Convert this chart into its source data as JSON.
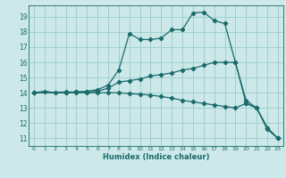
{
  "xlabel": "Humidex (Indice chaleur)",
  "bg_color": "#cce8e8",
  "grid_color": "#99cccc",
  "line_color": "#1a6b6b",
  "xlim": [
    -0.5,
    23.5
  ],
  "ylim": [
    10.5,
    19.75
  ],
  "xticks": [
    0,
    1,
    2,
    3,
    4,
    5,
    6,
    7,
    8,
    9,
    10,
    11,
    12,
    13,
    14,
    15,
    16,
    17,
    18,
    19,
    20,
    21,
    22,
    23
  ],
  "yticks": [
    11,
    12,
    13,
    14,
    15,
    16,
    17,
    18,
    19
  ],
  "line1_x": [
    0,
    1,
    2,
    3,
    4,
    5,
    6,
    7,
    8,
    9,
    10,
    11,
    12,
    13,
    14,
    15,
    16,
    17,
    18,
    19,
    20,
    21,
    22,
    23
  ],
  "line1_y": [
    14.0,
    14.1,
    14.0,
    14.0,
    14.05,
    14.1,
    14.2,
    14.5,
    15.5,
    17.9,
    17.5,
    17.5,
    17.6,
    18.15,
    18.15,
    19.25,
    19.3,
    18.75,
    18.55,
    16.0,
    13.3,
    13.0,
    11.6,
    11.0
  ],
  "line2_x": [
    0,
    3,
    4,
    5,
    6,
    7,
    8,
    9,
    10,
    11,
    12,
    13,
    14,
    15,
    16,
    17,
    18,
    19,
    20,
    21,
    22,
    23
  ],
  "line2_y": [
    14.0,
    14.05,
    14.05,
    14.05,
    14.1,
    14.3,
    14.7,
    14.8,
    14.9,
    15.1,
    15.2,
    15.3,
    15.5,
    15.6,
    15.8,
    16.0,
    16.0,
    16.0,
    13.5,
    13.0,
    11.7,
    11.0
  ],
  "line3_x": [
    0,
    3,
    4,
    5,
    6,
    7,
    8,
    9,
    10,
    11,
    12,
    13,
    14,
    15,
    16,
    17,
    18,
    19,
    20,
    21,
    22,
    23
  ],
  "line3_y": [
    14.0,
    14.0,
    14.0,
    14.0,
    14.0,
    14.0,
    14.0,
    13.95,
    13.9,
    13.85,
    13.75,
    13.65,
    13.5,
    13.4,
    13.3,
    13.2,
    13.1,
    13.0,
    13.3,
    13.0,
    11.7,
    11.0
  ]
}
